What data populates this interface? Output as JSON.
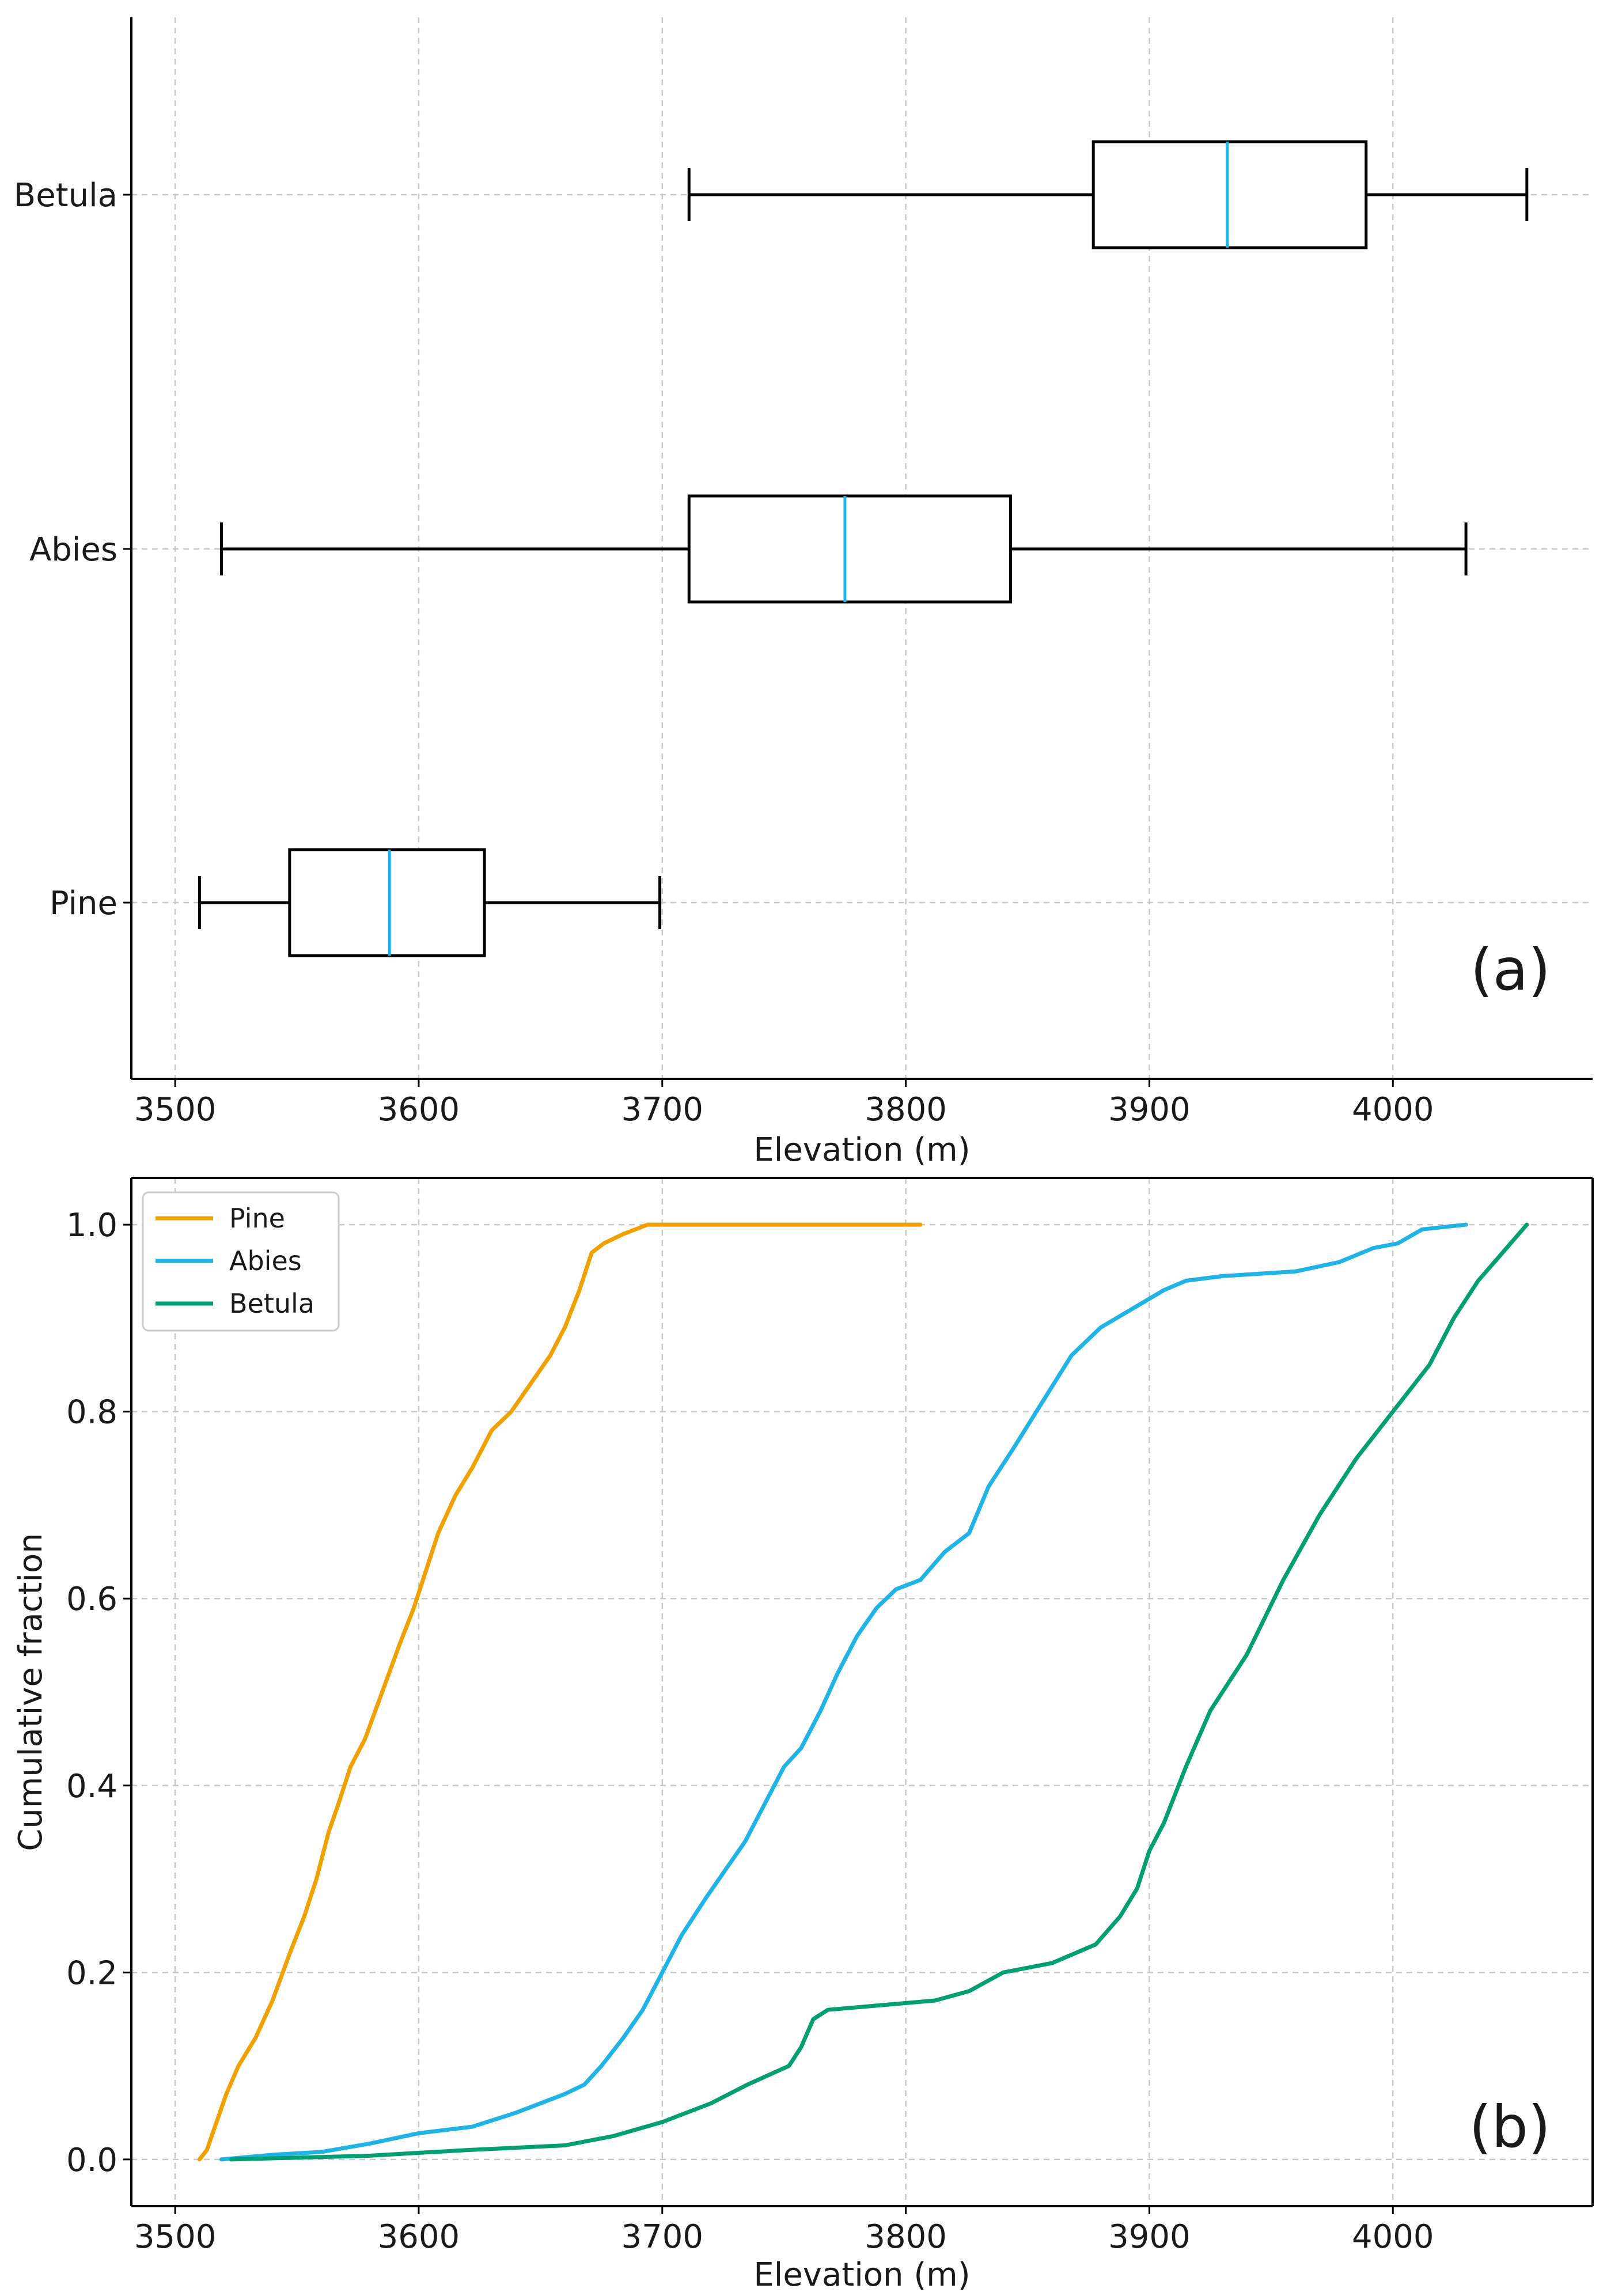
{
  "chart_data": [
    {
      "type": "box",
      "orientation": "horizontal",
      "panel_tag": "(a)",
      "xlabel": "Elevation (m)",
      "ylabel": "",
      "xlim": [
        3482,
        4082
      ],
      "xticks": [
        3500,
        3600,
        3700,
        3800,
        3900,
        4000
      ],
      "grid": true,
      "median_color": "#1fb3e6",
      "categories": [
        "Pine",
        "Abies",
        "Betula"
      ],
      "boxes": [
        {
          "name": "Pine",
          "whisker_low": 3510,
          "q1": 3547,
          "median": 3588,
          "q3": 3627,
          "whisker_high": 3699
        },
        {
          "name": "Abies",
          "whisker_low": 3519,
          "q1": 3711,
          "median": 3775,
          "q3": 3843,
          "whisker_high": 4030
        },
        {
          "name": "Betula",
          "whisker_low": 3711,
          "q1": 3877,
          "median": 3932,
          "q3": 3989,
          "whisker_high": 4055
        }
      ]
    },
    {
      "type": "line",
      "panel_tag": "(b)",
      "xlabel": "Elevation (m)",
      "ylabel": "Cumulative fraction",
      "xlim": [
        3482,
        4082
      ],
      "ylim": [
        -0.05,
        1.05
      ],
      "xticks": [
        3500,
        3600,
        3700,
        3800,
        3900,
        4000
      ],
      "yticks": [
        "0.0",
        "0.2",
        "0.4",
        "0.6",
        "0.8",
        "1.0"
      ],
      "grid": true,
      "legend_position": "top-left",
      "series": [
        {
          "name": "Pine",
          "color": "#f0a100",
          "points": [
            [
              3510,
              0.0
            ],
            [
              3513,
              0.01
            ],
            [
              3517,
              0.04
            ],
            [
              3521,
              0.07
            ],
            [
              3526,
              0.1
            ],
            [
              3533,
              0.13
            ],
            [
              3540,
              0.17
            ],
            [
              3547,
              0.22
            ],
            [
              3553,
              0.26
            ],
            [
              3558,
              0.3
            ],
            [
              3563,
              0.35
            ],
            [
              3567,
              0.38
            ],
            [
              3572,
              0.42
            ],
            [
              3578,
              0.45
            ],
            [
              3585,
              0.5
            ],
            [
              3592,
              0.55
            ],
            [
              3598,
              0.59
            ],
            [
              3603,
              0.63
            ],
            [
              3608,
              0.67
            ],
            [
              3615,
              0.71
            ],
            [
              3622,
              0.74
            ],
            [
              3630,
              0.78
            ],
            [
              3638,
              0.8
            ],
            [
              3646,
              0.83
            ],
            [
              3654,
              0.86
            ],
            [
              3660,
              0.89
            ],
            [
              3666,
              0.93
            ],
            [
              3671,
              0.97
            ],
            [
              3676,
              0.98
            ],
            [
              3684,
              0.99
            ],
            [
              3694,
              1.0
            ],
            [
              3750,
              1.0
            ],
            [
              3806,
              1.0
            ]
          ]
        },
        {
          "name": "Abies",
          "color": "#1fb3e6",
          "points": [
            [
              3519,
              0.0
            ],
            [
              3540,
              0.005
            ],
            [
              3560,
              0.008
            ],
            [
              3580,
              0.017
            ],
            [
              3600,
              0.028
            ],
            [
              3622,
              0.035
            ],
            [
              3640,
              0.05
            ],
            [
              3660,
              0.07
            ],
            [
              3668,
              0.08
            ],
            [
              3675,
              0.1
            ],
            [
              3684,
              0.13
            ],
            [
              3692,
              0.16
            ],
            [
              3700,
              0.2
            ],
            [
              3708,
              0.24
            ],
            [
              3718,
              0.28
            ],
            [
              3726,
              0.31
            ],
            [
              3734,
              0.34
            ],
            [
              3742,
              0.38
            ],
            [
              3750,
              0.42
            ],
            [
              3757,
              0.44
            ],
            [
              3765,
              0.48
            ],
            [
              3772,
              0.52
            ],
            [
              3780,
              0.56
            ],
            [
              3788,
              0.59
            ],
            [
              3796,
              0.61
            ],
            [
              3806,
              0.62
            ],
            [
              3816,
              0.65
            ],
            [
              3826,
              0.67
            ],
            [
              3834,
              0.72
            ],
            [
              3844,
              0.76
            ],
            [
              3856,
              0.81
            ],
            [
              3868,
              0.86
            ],
            [
              3880,
              0.89
            ],
            [
              3893,
              0.91
            ],
            [
              3906,
              0.93
            ],
            [
              3915,
              0.94
            ],
            [
              3930,
              0.945
            ],
            [
              3960,
              0.95
            ],
            [
              3978,
              0.96
            ],
            [
              3992,
              0.975
            ],
            [
              4002,
              0.98
            ],
            [
              4012,
              0.995
            ],
            [
              4030,
              1.0
            ]
          ]
        },
        {
          "name": "Betula",
          "color": "#009e73",
          "points": [
            [
              3523,
              0.0
            ],
            [
              3580,
              0.004
            ],
            [
              3620,
              0.01
            ],
            [
              3660,
              0.015
            ],
            [
              3680,
              0.025
            ],
            [
              3700,
              0.04
            ],
            [
              3720,
              0.06
            ],
            [
              3735,
              0.08
            ],
            [
              3752,
              0.1
            ],
            [
              3757,
              0.12
            ],
            [
              3762,
              0.15
            ],
            [
              3768,
              0.16
            ],
            [
              3790,
              0.165
            ],
            [
              3812,
              0.17
            ],
            [
              3826,
              0.18
            ],
            [
              3840,
              0.2
            ],
            [
              3860,
              0.21
            ],
            [
              3878,
              0.23
            ],
            [
              3888,
              0.26
            ],
            [
              3895,
              0.29
            ],
            [
              3900,
              0.33
            ],
            [
              3906,
              0.36
            ],
            [
              3915,
              0.42
            ],
            [
              3925,
              0.48
            ],
            [
              3940,
              0.54
            ],
            [
              3955,
              0.62
            ],
            [
              3970,
              0.69
            ],
            [
              3985,
              0.75
            ],
            [
              4000,
              0.8
            ],
            [
              4015,
              0.85
            ],
            [
              4025,
              0.9
            ],
            [
              4035,
              0.94
            ],
            [
              4045,
              0.97
            ],
            [
              4055,
              1.0
            ]
          ]
        }
      ]
    }
  ]
}
